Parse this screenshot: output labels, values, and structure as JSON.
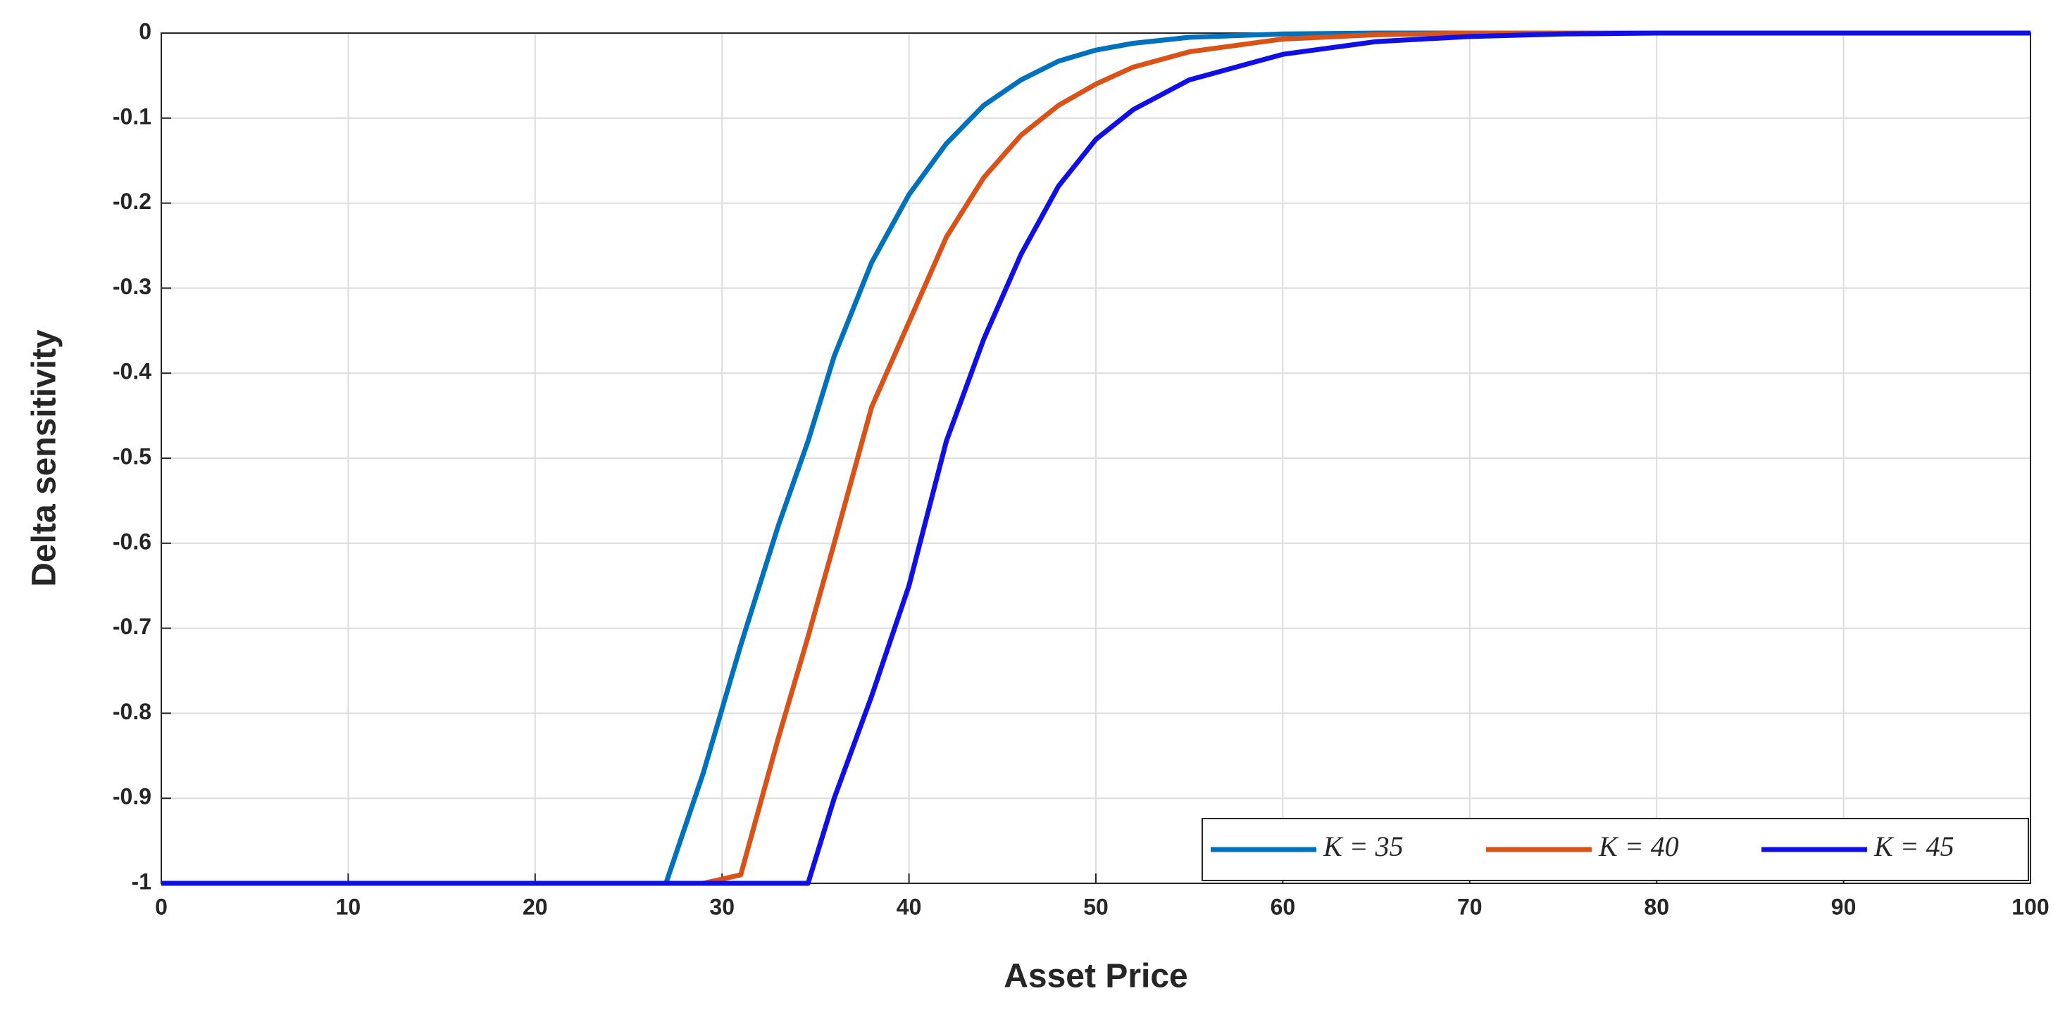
{
  "chart_data": {
    "type": "line",
    "xlabel": "Asset Price",
    "ylabel": "Delta sensitivity",
    "x": [
      0,
      10,
      20,
      27,
      29,
      31,
      33,
      34.6,
      36,
      38,
      40,
      42,
      44,
      46,
      48,
      50,
      52,
      55,
      60,
      65,
      70,
      75,
      80,
      90,
      100
    ],
    "series": [
      {
        "name": "K = 35",
        "color": "#0072bd",
        "values": [
          -1,
          -1,
          -1,
          -1,
          -0.87,
          -0.72,
          -0.58,
          -0.48,
          -0.38,
          -0.27,
          -0.19,
          -0.13,
          -0.085,
          -0.055,
          -0.033,
          -0.02,
          -0.012,
          -0.005,
          -0.001,
          0,
          0,
          0,
          0,
          0,
          0
        ]
      },
      {
        "name": "K = 40",
        "color": "#d95319",
        "values": [
          -1,
          -1,
          -1,
          -1,
          -1,
          -0.99,
          -0.83,
          -0.71,
          -0.6,
          -0.44,
          -0.34,
          -0.24,
          -0.17,
          -0.12,
          -0.085,
          -0.06,
          -0.04,
          -0.022,
          -0.007,
          -0.002,
          0,
          0,
          0,
          0,
          0
        ]
      },
      {
        "name": "K = 45",
        "color": "#1010e6",
        "values": [
          -1,
          -1,
          -1,
          -1,
          -1,
          -1,
          -1,
          -1,
          -0.9,
          -0.78,
          -0.65,
          -0.48,
          -0.36,
          -0.26,
          -0.18,
          -0.125,
          -0.09,
          -0.055,
          -0.025,
          -0.01,
          -0.004,
          -0.001,
          0,
          0,
          0
        ]
      }
    ],
    "xlim": [
      0,
      100
    ],
    "xticks": [
      0,
      10,
      20,
      30,
      40,
      50,
      60,
      70,
      80,
      90,
      100
    ],
    "ylim": [
      -1,
      0
    ],
    "yticks": [
      -1,
      -0.9,
      -0.8,
      -0.7,
      -0.6,
      -0.5,
      -0.4,
      -0.3,
      -0.2,
      -0.1,
      0
    ],
    "grid": true,
    "legend": "lower right"
  }
}
